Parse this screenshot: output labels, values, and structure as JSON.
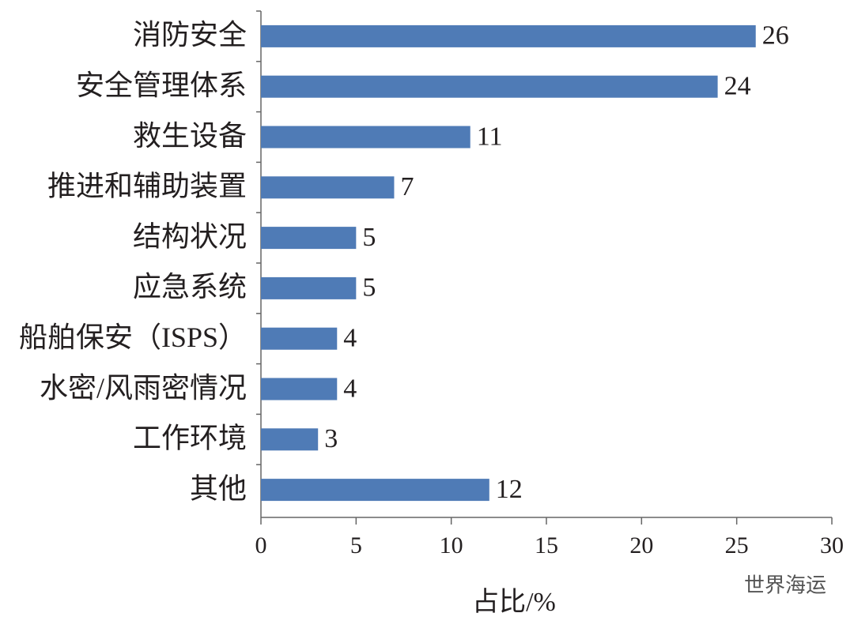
{
  "chart_data": {
    "type": "bar",
    "orientation": "horizontal",
    "categories": [
      "消防安全",
      "安全管理体系",
      "救生设备",
      "推进和辅助装置",
      "结构状况",
      "应急系统",
      "船舶保安（ISPS）",
      "水密/风雨密情况",
      "工作环境",
      "其他"
    ],
    "values": [
      26,
      24,
      11,
      7,
      5,
      5,
      4,
      4,
      3,
      12
    ],
    "color": "#4f7bb6",
    "xlabel": "占比/%",
    "xlim": [
      0,
      30
    ],
    "xticks": [
      0,
      5,
      10,
      15,
      20,
      25,
      30
    ],
    "watermark": "世界海运"
  }
}
